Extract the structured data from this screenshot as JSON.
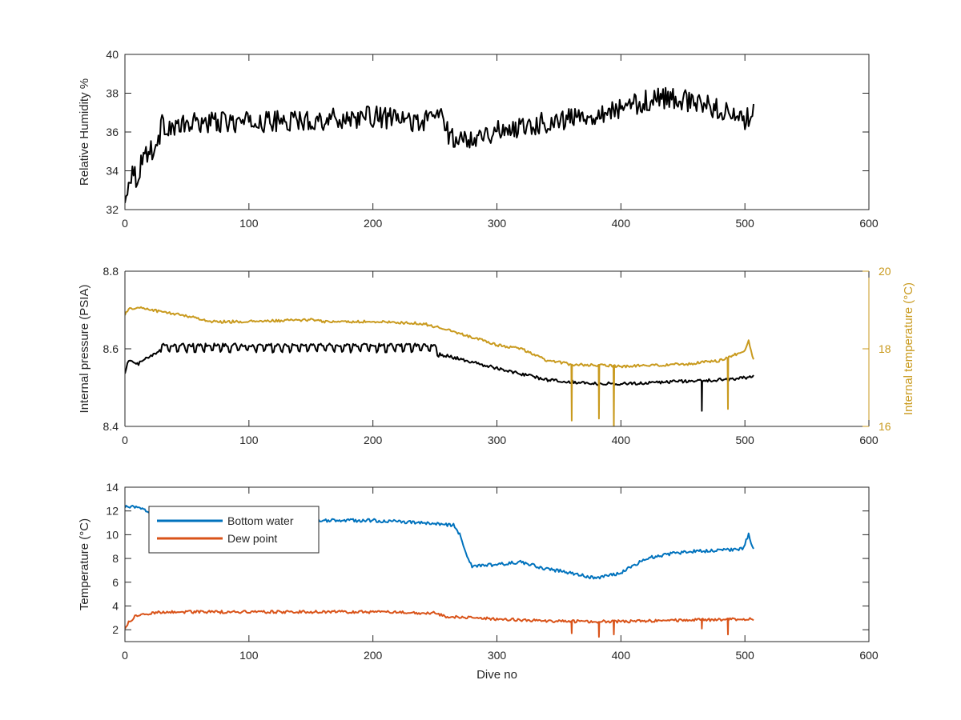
{
  "chart_data": [
    {
      "type": "line",
      "xlabel": "",
      "ylabel": "Relative Humidity %",
      "xlim": [
        0,
        600
      ],
      "ylim": [
        32,
        40
      ],
      "xticks": [
        0,
        100,
        200,
        300,
        400,
        500,
        600
      ],
      "yticks": [
        32,
        34,
        36,
        38,
        40
      ],
      "grid": false,
      "series": [
        {
          "color": "#000000",
          "noise": 0.55,
          "x": [
            0,
            3,
            6,
            10,
            15,
            20,
            26,
            30,
            40,
            60,
            100,
            150,
            200,
            240,
            255,
            262,
            270,
            290,
            320,
            360,
            400,
            420,
            440,
            460,
            480,
            500,
            507
          ],
          "y": [
            32.2,
            33.6,
            34.0,
            33.6,
            34.9,
            35.0,
            35.3,
            36.4,
            36.2,
            36.5,
            36.5,
            36.6,
            36.8,
            36.5,
            37.0,
            35.7,
            35.6,
            35.9,
            36.3,
            36.7,
            37.2,
            37.6,
            37.8,
            37.5,
            37.2,
            36.5,
            37.3
          ]
        }
      ]
    },
    {
      "type": "line",
      "xlabel": "",
      "ylabel": "Internal pressure (PSIA)",
      "ylabel_right": "Internal temperature (°C)",
      "xlim": [
        0,
        600
      ],
      "ylim": [
        8.4,
        8.8
      ],
      "ylim_right": [
        16,
        20
      ],
      "xticks": [
        0,
        100,
        200,
        300,
        400,
        500,
        600
      ],
      "yticks": [
        8.4,
        8.6,
        8.8
      ],
      "yticks_right": [
        16,
        18,
        20
      ],
      "grid": false,
      "series": [
        {
          "axis": "left",
          "color": "#000000",
          "noise": 0.004,
          "sawtooth": [
            28,
            255,
            0.016,
            7
          ],
          "x": [
            0,
            3,
            10,
            20,
            27,
            28,
            60,
            100,
            150,
            200,
            250,
            255,
            262,
            300,
            340,
            380,
            400,
            440,
            480,
            500,
            507
          ],
          "y": [
            8.54,
            8.57,
            8.56,
            8.58,
            8.59,
            8.61,
            8.61,
            8.61,
            8.61,
            8.61,
            8.61,
            8.585,
            8.58,
            8.55,
            8.52,
            8.51,
            8.51,
            8.515,
            8.52,
            8.525,
            8.53
          ],
          "spikes": [
            [
              465,
              8.44
            ]
          ]
        },
        {
          "axis": "right",
          "color": "#c99a1e",
          "noise": 0.035,
          "x": [
            0,
            5,
            15,
            30,
            50,
            70,
            100,
            150,
            160,
            200,
            240,
            260,
            280,
            300,
            320,
            340,
            360,
            400,
            450,
            480,
            500,
            503,
            507
          ],
          "y": [
            18.9,
            19.05,
            19.05,
            18.95,
            18.85,
            18.7,
            18.7,
            18.75,
            18.7,
            18.7,
            18.65,
            18.5,
            18.3,
            18.1,
            18.0,
            17.7,
            17.6,
            17.55,
            17.6,
            17.7,
            17.95,
            18.2,
            17.7
          ],
          "spikes": [
            [
              360,
              16.15
            ],
            [
              382,
              16.2
            ],
            [
              394,
              16.0
            ],
            [
              486,
              16.45
            ]
          ]
        }
      ]
    },
    {
      "type": "line",
      "xlabel": "Dive no",
      "ylabel": "Temperature (°C)",
      "xlim": [
        0,
        600
      ],
      "ylim": [
        1,
        14
      ],
      "xticks": [
        0,
        100,
        200,
        300,
        400,
        500,
        600
      ],
      "yticks": [
        2,
        4,
        6,
        8,
        10,
        12,
        14
      ],
      "grid": false,
      "legend": {
        "position": "top-left",
        "entries": [
          "Bottom water",
          "Dew point"
        ]
      },
      "series": [
        {
          "name": "Bottom water",
          "color": "#0072bd",
          "noise": 0.14,
          "x": [
            0,
            5,
            15,
            30,
            60,
            100,
            150,
            200,
            240,
            265,
            270,
            275,
            280,
            300,
            320,
            340,
            360,
            380,
            400,
            410,
            420,
            440,
            460,
            480,
            498,
            503,
            507
          ],
          "y": [
            12.3,
            12.4,
            12.1,
            11.7,
            11.5,
            11.4,
            11.2,
            11.2,
            11.0,
            10.8,
            10.0,
            8.5,
            7.3,
            7.5,
            7.7,
            7.1,
            6.8,
            6.3,
            6.8,
            7.4,
            8.0,
            8.4,
            8.6,
            8.7,
            8.8,
            10.0,
            8.7
          ]
        },
        {
          "name": "Dew point",
          "color": "#d95319",
          "noise": 0.12,
          "x": [
            0,
            3,
            8,
            15,
            30,
            60,
            100,
            150,
            200,
            250,
            260,
            300,
            350,
            400,
            450,
            500,
            507
          ],
          "y": [
            2.1,
            2.6,
            3.1,
            3.3,
            3.5,
            3.5,
            3.5,
            3.5,
            3.5,
            3.4,
            3.1,
            2.9,
            2.7,
            2.7,
            2.8,
            2.9,
            2.9
          ],
          "spikes": [
            [
              360,
              1.7
            ],
            [
              382,
              1.4
            ],
            [
              394,
              1.6
            ],
            [
              465,
              2.1
            ],
            [
              486,
              1.6
            ]
          ]
        }
      ]
    }
  ]
}
